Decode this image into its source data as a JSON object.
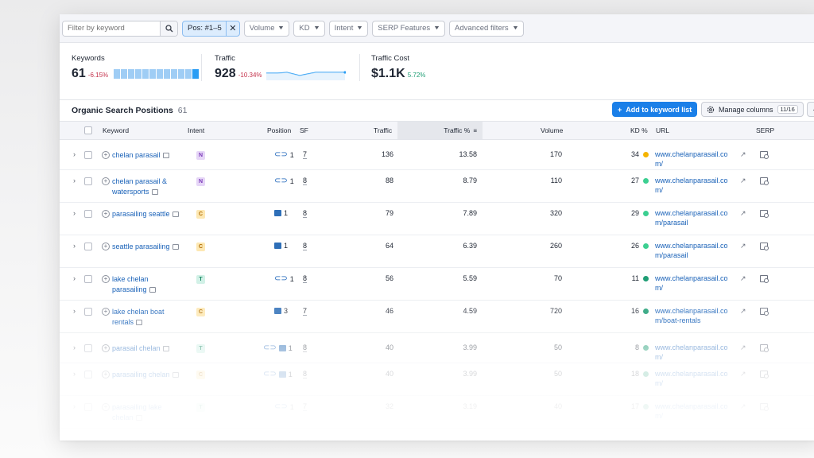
{
  "filters": {
    "search_placeholder": "Filter by keyword",
    "active_filter": "Pos: #1–5",
    "dropdowns": [
      "Volume",
      "KD",
      "Intent",
      "SERP Features",
      "Advanced filters"
    ]
  },
  "summary": {
    "keywords": {
      "label": "Keywords",
      "value": "61",
      "delta": "-6.15%"
    },
    "traffic": {
      "label": "Traffic",
      "value": "928",
      "delta": "-10.34%"
    },
    "traffic_cost": {
      "label": "Traffic Cost",
      "value": "$1.1K",
      "delta": "5.72%"
    }
  },
  "table_title": "Organic Search Positions",
  "table_count": "61",
  "buttons": {
    "add_to_list": "Add to keyword list",
    "manage_columns": "Manage columns",
    "columns_badge": "11/16"
  },
  "columns": {
    "keyword": "Keyword",
    "intent": "Intent",
    "position": "Position",
    "sf": "SF",
    "traffic": "Traffic",
    "traffic_pct": "Traffic %",
    "volume": "Volume",
    "kd": "KD %",
    "url": "URL",
    "serp": "SERP"
  },
  "rows": [
    {
      "keyword": "chelan parasail",
      "intent": "N",
      "pos_icons": [
        "link"
      ],
      "position": "1",
      "sf": "7",
      "traffic": "136",
      "traffic_pct": "13.58",
      "volume": "170",
      "kd": "34",
      "kd_color": "#f5b400",
      "url": "www.chelanparasail.com/"
    },
    {
      "keyword": "chelan parasail & watersports",
      "intent": "N",
      "pos_icons": [
        "link"
      ],
      "position": "1",
      "sf": "8",
      "traffic": "88",
      "traffic_pct": "8.79",
      "volume": "110",
      "kd": "27",
      "kd_color": "#3ccf91",
      "url": "www.chelanparasail.com/"
    },
    {
      "keyword": "parasailing seattle",
      "intent": "C",
      "pos_icons": [
        "image"
      ],
      "position": "1",
      "sf": "8",
      "traffic": "79",
      "traffic_pct": "7.89",
      "volume": "320",
      "kd": "29",
      "kd_color": "#3ccf91",
      "url": "www.chelanparasail.com/parasail"
    },
    {
      "keyword": "seattle parasailing",
      "intent": "C",
      "pos_icons": [
        "image"
      ],
      "position": "1",
      "sf": "8",
      "traffic": "64",
      "traffic_pct": "6.39",
      "volume": "260",
      "kd": "26",
      "kd_color": "#3ccf91",
      "url": "www.chelanparasail.com/parasail"
    },
    {
      "keyword": "lake chelan parasailing",
      "intent": "T",
      "pos_icons": [
        "link"
      ],
      "position": "1",
      "sf": "8",
      "traffic": "56",
      "traffic_pct": "5.59",
      "volume": "70",
      "kd": "11",
      "kd_color": "#1f9e75",
      "url": "www.chelanparasail.com/"
    },
    {
      "keyword": "lake chelan boat rentals",
      "intent": "C",
      "pos_icons": [
        "image"
      ],
      "position": "3",
      "sf": "7",
      "traffic": "46",
      "traffic_pct": "4.59",
      "volume": "720",
      "kd": "16",
      "kd_color": "#1f9e75",
      "url": "www.chelanparasail.com/boat-rentals"
    },
    {
      "keyword": "parasail chelan",
      "intent": "T",
      "pos_icons": [
        "link",
        "image"
      ],
      "position": "1",
      "sf": "8",
      "traffic": "40",
      "traffic_pct": "3.99",
      "volume": "50",
      "kd": "8",
      "kd_color": "#1f9e75",
      "url": "www.chelanparasail.com/"
    },
    {
      "keyword": "parasailing chelan",
      "intent": "C",
      "pos_icons": [
        "link",
        "image"
      ],
      "position": "1",
      "sf": "8",
      "traffic": "40",
      "traffic_pct": "3.99",
      "volume": "50",
      "kd": "18",
      "kd_color": "#1f9e75",
      "url": "www.chelanparasail.com/"
    },
    {
      "keyword": "parasailing lake chelan",
      "intent": "T",
      "pos_icons": [
        "link"
      ],
      "position": "1",
      "sf": "7",
      "traffic": "32",
      "traffic_pct": "3.19",
      "volume": "40",
      "kd": "17",
      "kd_color": "#1f9e75",
      "url": "www.chelanparasail.com/"
    }
  ]
}
